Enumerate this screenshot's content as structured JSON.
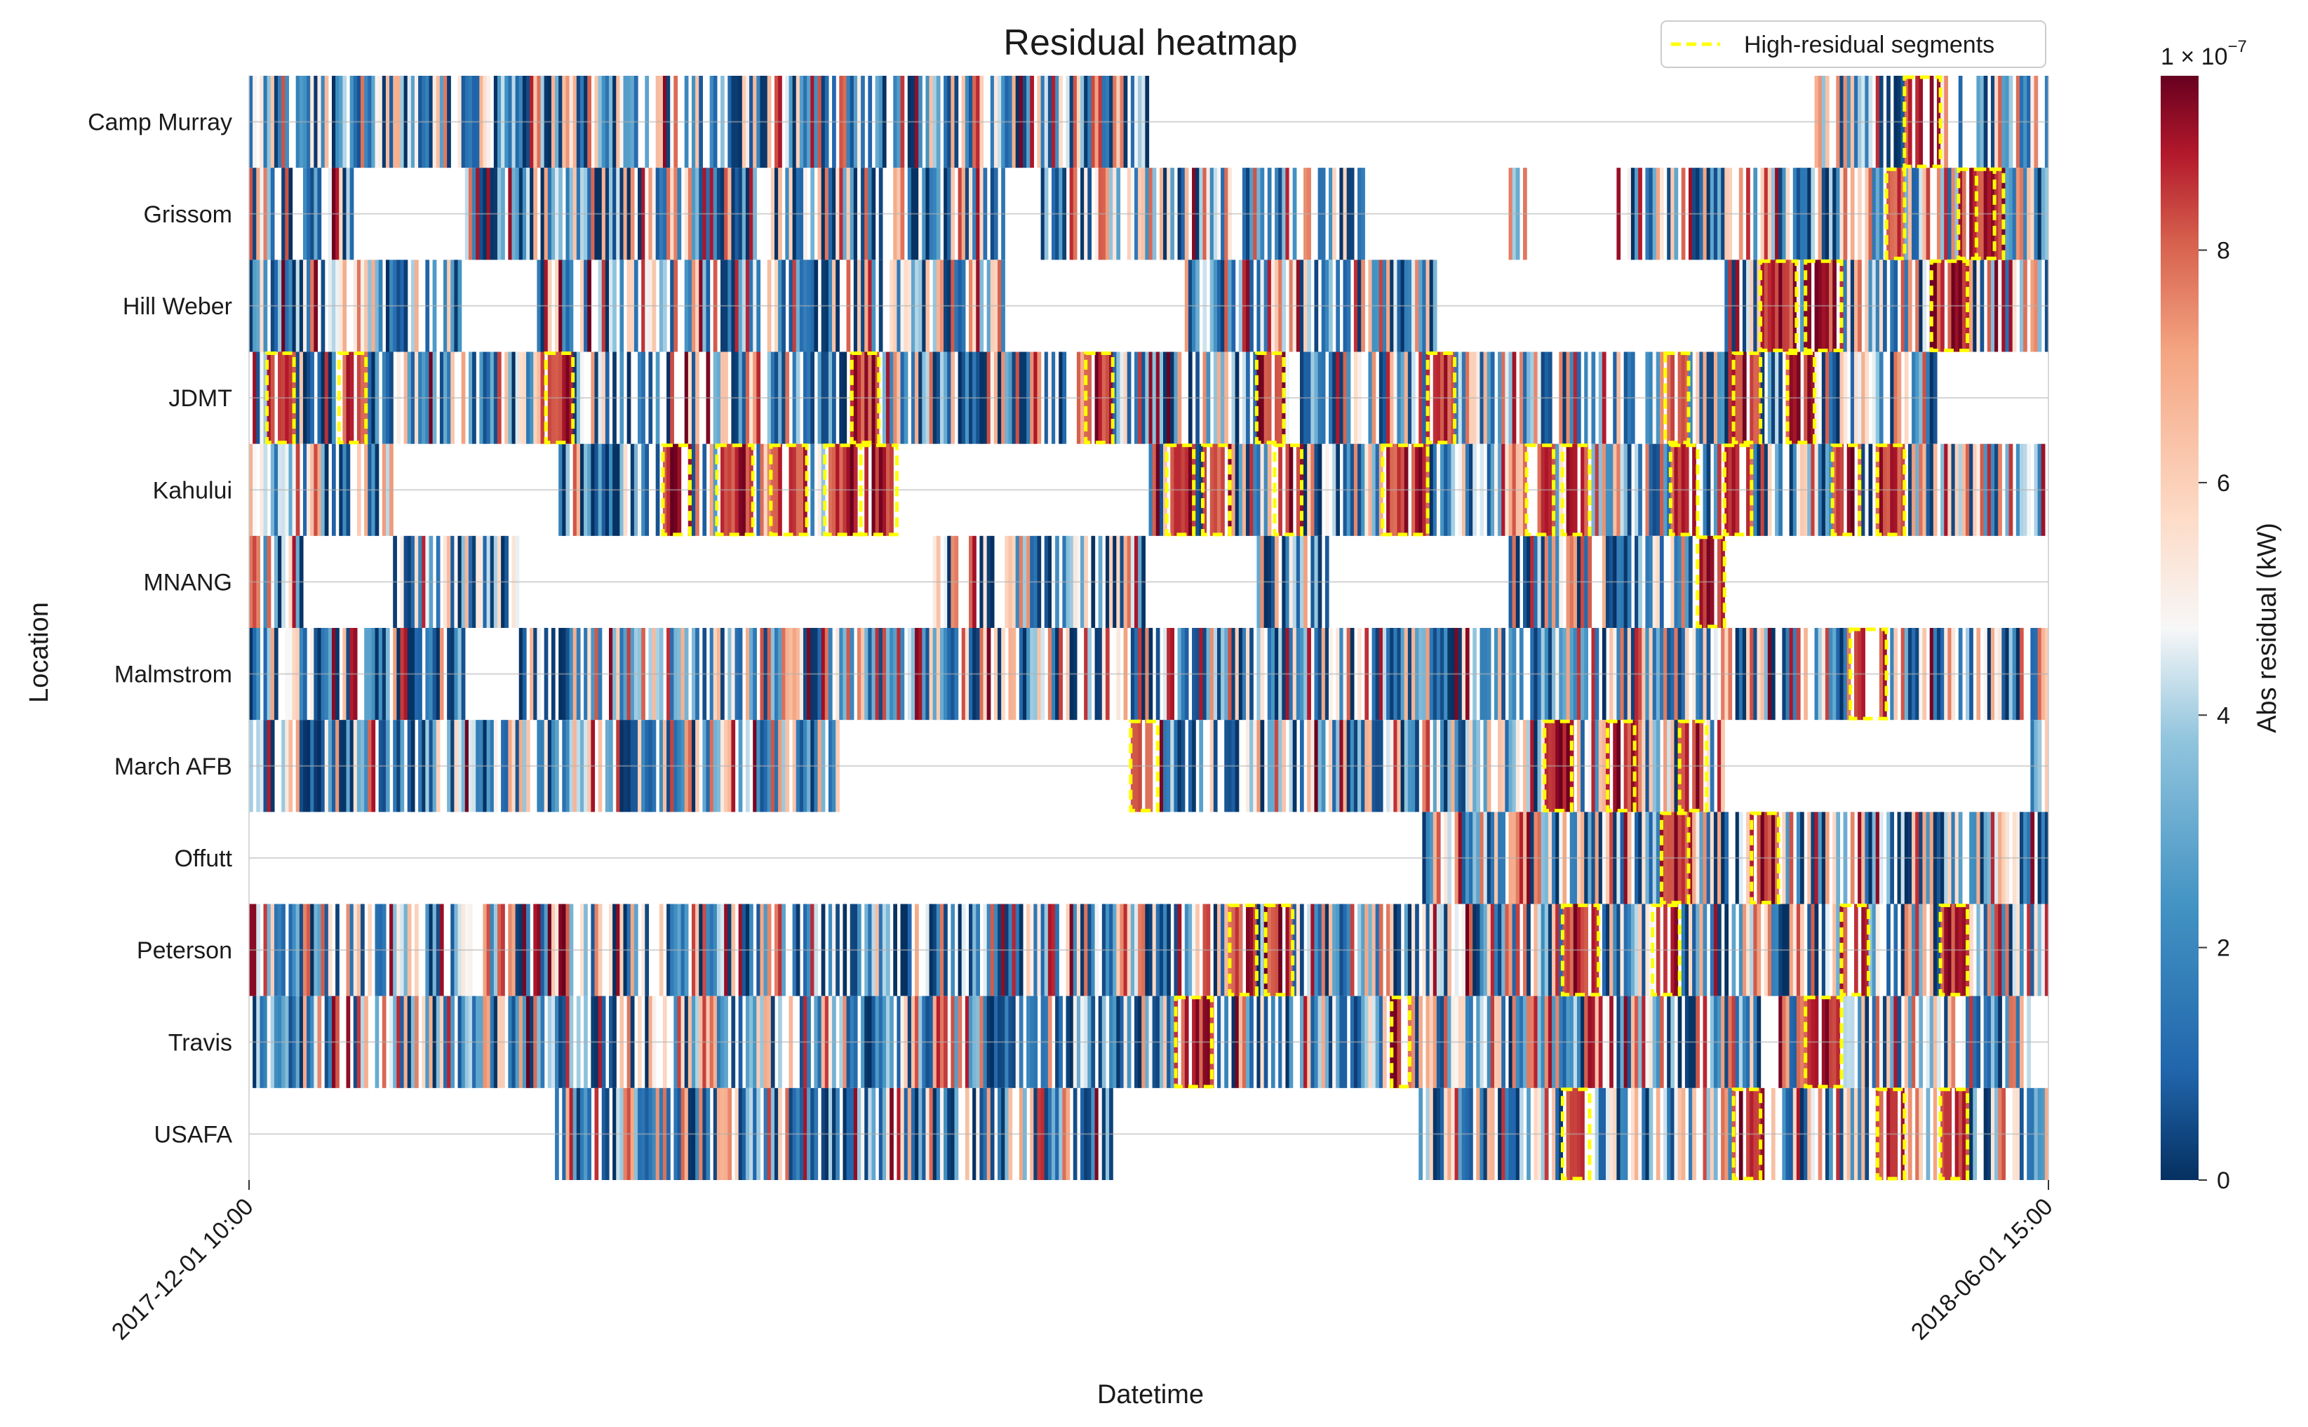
{
  "chart_data": {
    "type": "heatmap",
    "title": "Residual heatmap",
    "xlabel": "Datetime",
    "ylabel": "Location",
    "x_ticks": [
      "2017-12-01 10:00",
      "2018-06-01 15:00"
    ],
    "rows": [
      "Camp Murray",
      "Grissom",
      "Hill Weber",
      "JDMT",
      "Kahului",
      "MNANG",
      "Malmstrom",
      "March AFB",
      "Offutt",
      "Peterson",
      "Travis",
      "USAFA"
    ],
    "n_columns": 500,
    "colorbar": {
      "label": "Abs residual (kW)",
      "multiplier": "1 × 10",
      "multiplier_exp": "−7",
      "ticks": [
        "0",
        "2",
        "4",
        "6",
        "8"
      ],
      "tick_values": [
        0,
        2,
        4,
        6,
        8
      ],
      "range": [
        0,
        9.5
      ],
      "colormap": "RdBu_r"
    },
    "legend": {
      "label": "High-residual segments",
      "color": "#ffff00",
      "position": "top-right"
    },
    "coverage": [
      [
        [
          0.0,
          0.5
        ],
        [
          0.87,
          1.0
        ]
      ],
      [
        [
          0.0,
          0.06
        ],
        [
          0.12,
          0.42
        ],
        [
          0.44,
          0.56
        ],
        [
          0.52,
          0.62
        ],
        [
          0.7,
          0.72
        ],
        [
          0.76,
          0.8
        ],
        [
          0.78,
          1.0
        ]
      ],
      [
        [
          0.0,
          0.12
        ],
        [
          0.16,
          0.42
        ],
        [
          0.52,
          0.66
        ],
        [
          0.82,
          1.0
        ]
      ],
      [
        [
          0.0,
          0.94
        ]
      ],
      [
        [
          0.0,
          0.08
        ],
        [
          0.17,
          0.36
        ],
        [
          0.5,
          1.0
        ]
      ],
      [
        [
          0.0,
          0.03
        ],
        [
          0.08,
          0.15
        ],
        [
          0.38,
          0.5
        ],
        [
          0.56,
          0.6
        ],
        [
          0.7,
          0.82
        ]
      ],
      [
        [
          0.0,
          0.12
        ],
        [
          0.15,
          0.62
        ],
        [
          0.58,
          1.0
        ]
      ],
      [
        [
          0.0,
          0.33
        ],
        [
          0.49,
          0.82
        ],
        [
          0.99,
          1.0
        ]
      ],
      [
        [
          0.65,
          1.0
        ]
      ],
      [
        [
          0.0,
          0.35
        ],
        [
          0.21,
          1.0
        ]
      ],
      [
        [
          0.0,
          0.84
        ],
        [
          0.85,
          0.99
        ]
      ],
      [
        [
          0.17,
          0.48
        ],
        [
          0.65,
          1.0
        ]
      ]
    ],
    "high_residual_segments": [
      [
        0.92,
        0.94
      ],
      [
        0.91,
        0.92,
        0.96,
        0.975,
        0.95,
        0.97
      ],
      [
        0.84,
        0.86,
        0.865,
        0.885,
        0.935,
        0.955
      ],
      [
        0.01,
        0.025,
        0.05,
        0.065,
        0.165,
        0.18,
        0.335,
        0.35,
        0.465,
        0.48,
        0.56,
        0.575,
        0.655,
        0.67,
        0.787,
        0.8,
        0.825,
        0.84,
        0.855,
        0.87
      ],
      [
        0.23,
        0.245,
        0.26,
        0.28,
        0.29,
        0.31,
        0.32,
        0.34,
        0.34,
        0.36,
        0.51,
        0.525,
        0.53,
        0.545,
        0.57,
        0.585,
        0.63,
        0.655,
        0.71,
        0.725,
        0.73,
        0.745,
        0.79,
        0.805,
        0.82,
        0.835,
        0.88,
        0.895,
        0.905,
        0.92
      ],
      [
        0.805,
        0.82
      ],
      [
        0.89,
        0.91
      ],
      [
        0.49,
        0.505,
        0.72,
        0.735,
        0.755,
        0.77,
        0.795,
        0.81
      ],
      [
        0.785,
        0.8,
        0.835,
        0.85
      ],
      [
        0.545,
        0.56,
        0.565,
        0.58,
        0.73,
        0.75,
        0.78,
        0.795,
        0.885,
        0.9,
        0.94,
        0.955
      ],
      [
        0.515,
        0.535,
        0.635,
        0.645,
        0.865,
        0.885
      ],
      [
        0.73,
        0.745,
        0.825,
        0.84,
        0.905,
        0.92,
        0.94,
        0.955
      ]
    ]
  }
}
